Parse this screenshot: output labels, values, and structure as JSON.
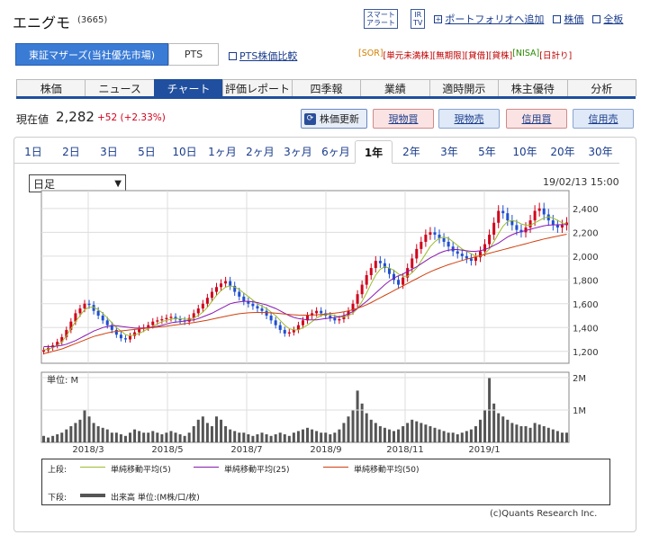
{
  "company": {
    "name": "エニグモ",
    "code": "(3665)"
  },
  "header_links": {
    "smart_alert": "スマート\nアラート",
    "ir_tv": "IR\nTV",
    "portfolio": "ポートフォリオへ追加",
    "stock_price": "株価",
    "full_board": "全板"
  },
  "market": {
    "selected": "東証マザーズ(当社優先市場)",
    "pts": "PTS",
    "pts_compare": "PTS株価比較"
  },
  "badges": [
    {
      "label": "[SOR]",
      "color": "#d08000"
    },
    {
      "label": "[単元未満株]",
      "color": "#c00000"
    },
    {
      "label": "[無期限]",
      "color": "#c00000"
    },
    {
      "label": "[貸借]",
      "color": "#c00000"
    },
    {
      "label": "[貸株]",
      "color": "#c00000"
    },
    {
      "label": "[NISA]",
      "color": "#2a8a00"
    },
    {
      "label": "[日計り]",
      "color": "#c00000"
    }
  ],
  "nav_tabs": [
    "株価",
    "ニュース",
    "チャート",
    "評価レポート",
    "四季報",
    "業績",
    "適時開示",
    "株主優待",
    "分析"
  ],
  "price": {
    "label": "現在値",
    "value": "2,282",
    "change": "+52 (+2.33%)"
  },
  "actions": {
    "refresh": "株価更新",
    "spot_buy": "現物買",
    "spot_sell": "現物売",
    "margin_buy": "信用買",
    "margin_sell": "信用売"
  },
  "period_tabs": [
    "1日",
    "2日",
    "3日",
    "5日",
    "10日",
    "1ヶ月",
    "2ヶ月",
    "3ヶ月",
    "6ヶ月",
    "1年",
    "2年",
    "3年",
    "5年",
    "10年",
    "20年",
    "30年"
  ],
  "active_period": "1年",
  "interval_select": "日足",
  "timestamp": "19/02/13 15:00",
  "chart_data": {
    "type": "candlestick",
    "x_labels": [
      "2018/3",
      "2018/5",
      "2018/7",
      "2018/9",
      "2018/11",
      "2019/1"
    ],
    "price_ticks": [
      "2,400",
      "2,200",
      "2,000",
      "1,800",
      "1,600",
      "1,400",
      "1,200"
    ],
    "ylim": [
      1100,
      2550
    ],
    "closes": [
      1210,
      1230,
      1250,
      1280,
      1320,
      1380,
      1450,
      1520,
      1560,
      1600,
      1590,
      1540,
      1500,
      1460,
      1420,
      1380,
      1340,
      1310,
      1300,
      1330,
      1360,
      1390,
      1400,
      1420,
      1450,
      1460,
      1470,
      1480,
      1490,
      1470,
      1460,
      1450,
      1480,
      1520,
      1560,
      1600,
      1650,
      1700,
      1740,
      1770,
      1790,
      1750,
      1700,
      1660,
      1620,
      1600,
      1580,
      1560,
      1540,
      1500,
      1460,
      1420,
      1380,
      1350,
      1360,
      1380,
      1420,
      1460,
      1500,
      1520,
      1540,
      1520,
      1500,
      1480,
      1460,
      1470,
      1500,
      1540,
      1600,
      1680,
      1760,
      1840,
      1900,
      1960,
      1940,
      1900,
      1850,
      1800,
      1760,
      1820,
      1900,
      1980,
      2060,
      2120,
      2180,
      2200,
      2180,
      2150,
      2120,
      2080,
      2040,
      2020,
      2000,
      1980,
      1960,
      1990,
      2040,
      2100,
      2180,
      2280,
      2380,
      2360,
      2300,
      2260,
      2220,
      2200,
      2240,
      2300,
      2380,
      2400,
      2350,
      2300,
      2260,
      2240,
      2260,
      2282
    ],
    "ma5": [
      1210,
      1220,
      1230,
      1250,
      1280,
      1330,
      1390,
      1450,
      1500,
      1550,
      1570,
      1570,
      1550,
      1520,
      1480,
      1440,
      1400,
      1370,
      1340,
      1330,
      1340,
      1350,
      1370,
      1390,
      1410,
      1430,
      1450,
      1460,
      1470,
      1475,
      1475,
      1470,
      1470,
      1480,
      1500,
      1530,
      1570,
      1620,
      1670,
      1710,
      1740,
      1750,
      1740,
      1720,
      1690,
      1660,
      1630,
      1600,
      1580,
      1560,
      1530,
      1500,
      1460,
      1420,
      1390,
      1380,
      1380,
      1400,
      1420,
      1450,
      1480,
      1500,
      1510,
      1510,
      1500,
      1490,
      1490,
      1500,
      1520,
      1560,
      1620,
      1690,
      1770,
      1840,
      1890,
      1910,
      1900,
      1880,
      1850,
      1830,
      1830,
      1860,
      1900,
      1960,
      2020,
      2080,
      2120,
      2150,
      2160,
      2150,
      2120,
      2090,
      2060,
      2040,
      2020,
      2000,
      2000,
      2020,
      2060,
      2120,
      2190,
      2250,
      2290,
      2300,
      2290,
      2270,
      2260,
      2260,
      2280,
      2300,
      2320,
      2330,
      2320,
      2300,
      2280,
      2270
    ],
    "ma25": [
      1240,
      1240,
      1240,
      1245,
      1250,
      1260,
      1275,
      1290,
      1310,
      1330,
      1350,
      1370,
      1385,
      1400,
      1410,
      1415,
      1415,
      1410,
      1405,
      1400,
      1395,
      1395,
      1395,
      1400,
      1405,
      1410,
      1420,
      1430,
      1440,
      1445,
      1450,
      1455,
      1460,
      1465,
      1475,
      1490,
      1505,
      1520,
      1540,
      1560,
      1580,
      1600,
      1610,
      1615,
      1620,
      1620,
      1615,
      1610,
      1600,
      1590,
      1575,
      1560,
      1540,
      1520,
      1500,
      1485,
      1475,
      1470,
      1465,
      1465,
      1465,
      1470,
      1475,
      1480,
      1485,
      1490,
      1500,
      1515,
      1535,
      1560,
      1590,
      1620,
      1655,
      1690,
      1725,
      1760,
      1790,
      1815,
      1835,
      1850,
      1870,
      1890,
      1910,
      1935,
      1960,
      1985,
      2005,
      2025,
      2040,
      2050,
      2055,
      2055,
      2050,
      2045,
      2040,
      2040,
      2045,
      2055,
      2070,
      2090,
      2110,
      2135,
      2160,
      2180,
      2195,
      2205,
      2215,
      2225,
      2235,
      2245,
      2255,
      2260,
      2262,
      2263,
      2264,
      2265
    ],
    "ma50": [
      1180,
      1190,
      1200,
      1210,
      1220,
      1235,
      1250,
      1265,
      1280,
      1295,
      1310,
      1325,
      1335,
      1345,
      1355,
      1362,
      1368,
      1372,
      1376,
      1380,
      1384,
      1388,
      1392,
      1396,
      1400,
      1404,
      1408,
      1412,
      1417,
      1422,
      1427,
      1432,
      1437,
      1442,
      1448,
      1455,
      1462,
      1470,
      1478,
      1486,
      1494,
      1502,
      1510,
      1516,
      1520,
      1524,
      1526,
      1527,
      1527,
      1526,
      1524,
      1521,
      1518,
      1514,
      1510,
      1507,
      1505,
      1504,
      1504,
      1505,
      1507,
      1510,
      1513,
      1517,
      1521,
      1526,
      1532,
      1540,
      1550,
      1562,
      1576,
      1592,
      1610,
      1630,
      1650,
      1670,
      1690,
      1710,
      1730,
      1750,
      1770,
      1790,
      1810,
      1830,
      1850,
      1868,
      1885,
      1900,
      1914,
      1928,
      1940,
      1952,
      1963,
      1974,
      1984,
      1994,
      2004,
      2014,
      2024,
      2034,
      2044,
      2054,
      2064,
      2074,
      2084,
      2094,
      2104,
      2114,
      2124,
      2134,
      2144,
      2152,
      2160,
      2168,
      2176,
      2184
    ],
    "volume_label": "単位: M",
    "volume_ticks": [
      "2M",
      "1M"
    ],
    "volume_max": 2.0,
    "volumes": [
      0.2,
      0.15,
      0.2,
      0.25,
      0.3,
      0.4,
      0.5,
      0.6,
      0.7,
      1.0,
      0.8,
      0.6,
      0.5,
      0.45,
      0.4,
      0.3,
      0.3,
      0.25,
      0.2,
      0.3,
      0.4,
      0.35,
      0.3,
      0.3,
      0.35,
      0.3,
      0.25,
      0.3,
      0.35,
      0.3,
      0.25,
      0.2,
      0.3,
      0.5,
      0.7,
      0.8,
      0.6,
      0.5,
      0.8,
      0.7,
      0.5,
      0.4,
      0.35,
      0.3,
      0.3,
      0.25,
      0.2,
      0.25,
      0.3,
      0.25,
      0.2,
      0.25,
      0.3,
      0.25,
      0.2,
      0.3,
      0.35,
      0.4,
      0.45,
      0.4,
      0.35,
      0.3,
      0.3,
      0.25,
      0.3,
      0.4,
      0.6,
      0.8,
      1.0,
      1.6,
      1.2,
      0.9,
      0.7,
      0.6,
      0.5,
      0.45,
      0.4,
      0.35,
      0.4,
      0.5,
      0.6,
      0.7,
      0.65,
      0.6,
      0.55,
      0.5,
      0.45,
      0.4,
      0.35,
      0.3,
      0.3,
      0.25,
      0.3,
      0.35,
      0.4,
      0.5,
      0.7,
      1.0,
      2.0,
      1.2,
      0.9,
      0.8,
      0.7,
      0.6,
      0.55,
      0.5,
      0.5,
      0.45,
      0.6,
      0.55,
      0.5,
      0.45,
      0.4,
      0.35,
      0.3,
      0.3
    ],
    "legend": {
      "upper_label": "上段:",
      "lower_label": "下段:",
      "ma5": "単純移動平均(5)",
      "ma25": "単純移動平均(25)",
      "ma50": "単純移動平均(50)",
      "volume": "出来高 単位:(M株/口/枚)"
    },
    "colors": {
      "up": "#d0021b",
      "down": "#1f4fd0",
      "ma5": "#9bbd2a",
      "ma25": "#8a1ab0",
      "ma50": "#d04010",
      "volume": "#555555"
    }
  },
  "copyright": "(c)Quants Research Inc."
}
